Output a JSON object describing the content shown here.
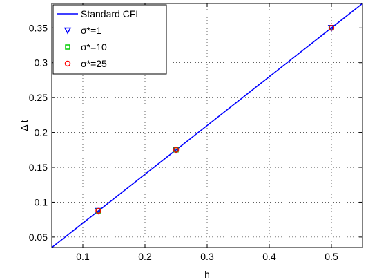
{
  "chart_data": {
    "type": "line",
    "title": "",
    "xlabel": "h",
    "ylabel": "Δ t",
    "xlim": [
      0.05,
      0.55
    ],
    "ylim": [
      0.035,
      0.385
    ],
    "xticks": [
      0.1,
      0.2,
      0.3,
      0.4,
      0.5
    ],
    "xtick_labels": [
      "0.1",
      "0.2",
      "0.3",
      "0.4",
      "0.5"
    ],
    "yticks": [
      0.05,
      0.1,
      0.15,
      0.2,
      0.25,
      0.3,
      0.35
    ],
    "ytick_labels": [
      "0.05",
      "0.1",
      "0.15",
      "0.2",
      "0.25",
      "0.3",
      "0.35"
    ],
    "grid": true,
    "legend_position": "top-left",
    "series": [
      {
        "name": "Standard CFL",
        "kind": "line",
        "color": "#0000ff",
        "x": [
          0.05,
          0.55
        ],
        "y": [
          0.035,
          0.385
        ]
      },
      {
        "name": "σ*=1",
        "kind": "scatter",
        "marker": "triangle-down",
        "color": "#0000ff",
        "x": [
          0.125,
          0.25,
          0.5
        ],
        "y": [
          0.0875,
          0.175,
          0.35
        ]
      },
      {
        "name": "σ*=10",
        "kind": "scatter",
        "marker": "square",
        "color": "#00cc00",
        "x": [
          0.125,
          0.25,
          0.5
        ],
        "y": [
          0.0875,
          0.175,
          0.35
        ]
      },
      {
        "name": "σ*=25",
        "kind": "scatter",
        "marker": "circle",
        "color": "#ff0000",
        "x": [
          0.125,
          0.25,
          0.5
        ],
        "y": [
          0.0875,
          0.175,
          0.35
        ]
      }
    ]
  }
}
